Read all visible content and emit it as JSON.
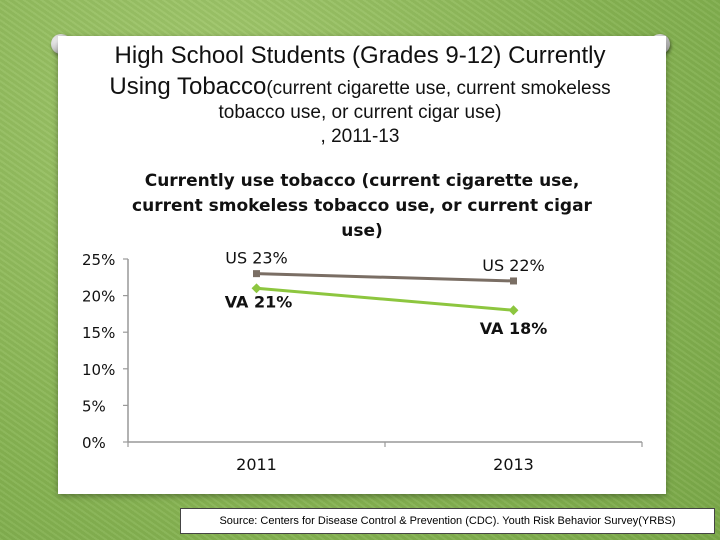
{
  "slide": {
    "title_line1": "High School Students (Grades 9-12) Currently",
    "title_line2_main": "Using Tobacco",
    "title_line2_rest": "(current cigarette use, current smokeless",
    "title_line3": "tobacco use, or  current cigar use)",
    "title_line4": ", 2011-13",
    "source": "Source: Centers for Disease Control & Prevention (CDC). Youth Risk Behavior Survey(YRBS)"
  },
  "chart_data": {
    "type": "line",
    "title_lines": [
      "Currently use tobacco (current cigarette use,",
      "current smokeless tobacco use, or  current cigar",
      "use)"
    ],
    "categories": [
      "2011",
      "2013"
    ],
    "ytick_labels": [
      "0%",
      "5%",
      "10%",
      "15%",
      "20%",
      "25%"
    ],
    "ylim": [
      0,
      25
    ],
    "series": [
      {
        "name": "US",
        "values": [
          23,
          22
        ],
        "labels": [
          "US  23%",
          "US  22%"
        ],
        "color": "#7a6e64"
      },
      {
        "name": "VA",
        "values": [
          21,
          18
        ],
        "labels": [
          "VA  21%",
          "VA  18%"
        ],
        "color": "#8dc63f"
      }
    ],
    "grid": false
  }
}
